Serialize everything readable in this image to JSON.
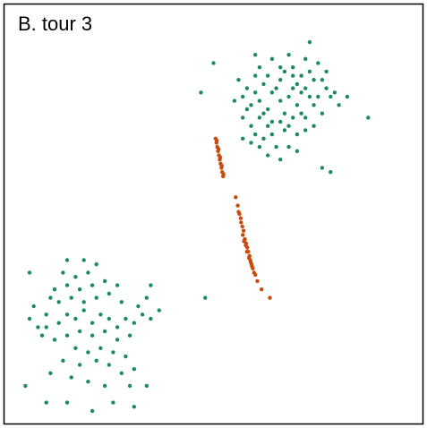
{
  "chart_data": {
    "type": "scatter",
    "title": "B. tour 3",
    "xlabel": "",
    "ylabel": "",
    "xlim": [
      0,
      1
    ],
    "ylim": [
      0,
      1
    ],
    "grid": false,
    "series": [
      {
        "color": "#1b8a63",
        "points": [
          [
            0.73,
            0.91
          ],
          [
            0.61,
            0.85
          ],
          [
            0.64,
            0.87
          ],
          [
            0.67,
            0.84
          ],
          [
            0.69,
            0.85
          ],
          [
            0.71,
            0.83
          ],
          [
            0.74,
            0.82
          ],
          [
            0.77,
            0.84
          ],
          [
            0.72,
            0.8
          ],
          [
            0.69,
            0.8
          ],
          [
            0.66,
            0.82
          ],
          [
            0.64,
            0.79
          ],
          [
            0.62,
            0.81
          ],
          [
            0.6,
            0.83
          ],
          [
            0.58,
            0.8
          ],
          [
            0.56,
            0.82
          ],
          [
            0.55,
            0.77
          ],
          [
            0.59,
            0.76
          ],
          [
            0.61,
            0.77
          ],
          [
            0.63,
            0.75
          ],
          [
            0.66,
            0.77
          ],
          [
            0.68,
            0.78
          ],
          [
            0.7,
            0.76
          ],
          [
            0.73,
            0.78
          ],
          [
            0.75,
            0.78
          ],
          [
            0.77,
            0.8
          ],
          [
            0.79,
            0.79
          ],
          [
            0.82,
            0.78
          ],
          [
            0.8,
            0.76
          ],
          [
            0.76,
            0.74
          ],
          [
            0.72,
            0.73
          ],
          [
            0.69,
            0.73
          ],
          [
            0.66,
            0.72
          ],
          [
            0.63,
            0.71
          ],
          [
            0.61,
            0.73
          ],
          [
            0.59,
            0.71
          ],
          [
            0.57,
            0.73
          ],
          [
            0.6,
            0.69
          ],
          [
            0.62,
            0.68
          ],
          [
            0.64,
            0.69
          ],
          [
            0.67,
            0.7
          ],
          [
            0.7,
            0.69
          ],
          [
            0.72,
            0.7
          ],
          [
            0.74,
            0.71
          ],
          [
            0.65,
            0.66
          ],
          [
            0.68,
            0.66
          ],
          [
            0.61,
            0.66
          ],
          [
            0.63,
            0.64
          ],
          [
            0.66,
            0.63
          ],
          [
            0.7,
            0.65
          ],
          [
            0.59,
            0.67
          ],
          [
            0.87,
            0.73
          ],
          [
            0.76,
            0.61
          ],
          [
            0.78,
            0.6
          ],
          [
            0.57,
            0.78
          ],
          [
            0.6,
            0.88
          ],
          [
            0.68,
            0.88
          ],
          [
            0.72,
            0.87
          ],
          [
            0.75,
            0.86
          ],
          [
            0.65,
            0.8
          ],
          [
            0.71,
            0.79
          ],
          [
            0.74,
            0.76
          ],
          [
            0.62,
            0.74
          ],
          [
            0.67,
            0.74
          ],
          [
            0.7,
            0.81
          ],
          [
            0.58,
            0.75
          ],
          [
            0.63,
            0.83
          ],
          [
            0.66,
            0.85
          ],
          [
            0.69,
            0.83
          ],
          [
            0.73,
            0.84
          ],
          [
            0.76,
            0.82
          ],
          [
            0.78,
            0.78
          ],
          [
            0.64,
            0.72
          ],
          [
            0.68,
            0.71
          ],
          [
            0.71,
            0.74
          ],
          [
            0.6,
            0.79
          ],
          [
            0.57,
            0.68
          ],
          [
            0.5,
            0.86
          ],
          [
            0.47,
            0.79
          ],
          [
            0.06,
            0.25
          ],
          [
            0.08,
            0.23
          ],
          [
            0.1,
            0.26
          ],
          [
            0.13,
            0.24
          ],
          [
            0.15,
            0.26
          ],
          [
            0.17,
            0.25
          ],
          [
            0.19,
            0.27
          ],
          [
            0.21,
            0.24
          ],
          [
            0.23,
            0.26
          ],
          [
            0.25,
            0.25
          ],
          [
            0.27,
            0.23
          ],
          [
            0.29,
            0.25
          ],
          [
            0.31,
            0.24
          ],
          [
            0.33,
            0.26
          ],
          [
            0.35,
            0.25
          ],
          [
            0.32,
            0.28
          ],
          [
            0.28,
            0.29
          ],
          [
            0.25,
            0.31
          ],
          [
            0.22,
            0.3
          ],
          [
            0.19,
            0.29
          ],
          [
            0.16,
            0.3
          ],
          [
            0.13,
            0.29
          ],
          [
            0.11,
            0.3
          ],
          [
            0.12,
            0.32
          ],
          [
            0.15,
            0.33
          ],
          [
            0.18,
            0.32
          ],
          [
            0.21,
            0.33
          ],
          [
            0.24,
            0.34
          ],
          [
            0.27,
            0.33
          ],
          [
            0.2,
            0.36
          ],
          [
            0.17,
            0.35
          ],
          [
            0.14,
            0.36
          ],
          [
            0.19,
            0.39
          ],
          [
            0.22,
            0.38
          ],
          [
            0.15,
            0.39
          ],
          [
            0.09,
            0.21
          ],
          [
            0.12,
            0.2
          ],
          [
            0.15,
            0.21
          ],
          [
            0.18,
            0.22
          ],
          [
            0.21,
            0.21
          ],
          [
            0.24,
            0.22
          ],
          [
            0.27,
            0.2
          ],
          [
            0.3,
            0.21
          ],
          [
            0.17,
            0.18
          ],
          [
            0.2,
            0.17
          ],
          [
            0.23,
            0.18
          ],
          [
            0.26,
            0.17
          ],
          [
            0.29,
            0.16
          ],
          [
            0.14,
            0.15
          ],
          [
            0.18,
            0.14
          ],
          [
            0.22,
            0.15
          ],
          [
            0.25,
            0.14
          ],
          [
            0.28,
            0.12
          ],
          [
            0.31,
            0.13
          ],
          [
            0.11,
            0.12
          ],
          [
            0.16,
            0.11
          ],
          [
            0.2,
            0.1
          ],
          [
            0.24,
            0.09
          ],
          [
            0.3,
            0.09
          ],
          [
            0.34,
            0.09
          ],
          [
            0.1,
            0.05
          ],
          [
            0.15,
            0.05
          ],
          [
            0.21,
            0.03
          ],
          [
            0.26,
            0.05
          ],
          [
            0.31,
            0.04
          ],
          [
            0.05,
            0.09
          ],
          [
            0.07,
            0.28
          ],
          [
            0.1,
            0.23
          ],
          [
            0.34,
            0.3
          ],
          [
            0.37,
            0.27
          ],
          [
            0.06,
            0.36
          ],
          [
            0.35,
            0.33
          ],
          [
            0.48,
            0.3
          ]
        ]
      },
      {
        "color": "#c84a0c",
        "points": [
          [
            0.505,
            0.68
          ],
          [
            0.507,
            0.67
          ],
          [
            0.509,
            0.66
          ],
          [
            0.511,
            0.65
          ],
          [
            0.513,
            0.64
          ],
          [
            0.515,
            0.63
          ],
          [
            0.517,
            0.62
          ],
          [
            0.519,
            0.61
          ],
          [
            0.521,
            0.6
          ],
          [
            0.523,
            0.59
          ],
          [
            0.508,
            0.675
          ],
          [
            0.512,
            0.655
          ],
          [
            0.516,
            0.635
          ],
          [
            0.52,
            0.615
          ],
          [
            0.524,
            0.595
          ],
          [
            0.553,
            0.54
          ],
          [
            0.558,
            0.52
          ],
          [
            0.562,
            0.5
          ],
          [
            0.566,
            0.48
          ],
          [
            0.569,
            0.47
          ],
          [
            0.572,
            0.46
          ],
          [
            0.575,
            0.44
          ],
          [
            0.578,
            0.43
          ],
          [
            0.581,
            0.42
          ],
          [
            0.583,
            0.41
          ],
          [
            0.586,
            0.4
          ],
          [
            0.588,
            0.39
          ],
          [
            0.591,
            0.38
          ],
          [
            0.594,
            0.37
          ],
          [
            0.597,
            0.36
          ],
          [
            0.6,
            0.355
          ],
          [
            0.605,
            0.34
          ],
          [
            0.615,
            0.32
          ],
          [
            0.57,
            0.45
          ],
          [
            0.573,
            0.435
          ],
          [
            0.577,
            0.425
          ],
          [
            0.58,
            0.41
          ],
          [
            0.585,
            0.395
          ],
          [
            0.589,
            0.385
          ],
          [
            0.592,
            0.375
          ],
          [
            0.635,
            0.3
          ],
          [
            0.56,
            0.505
          ],
          [
            0.565,
            0.49
          ]
        ]
      }
    ]
  }
}
